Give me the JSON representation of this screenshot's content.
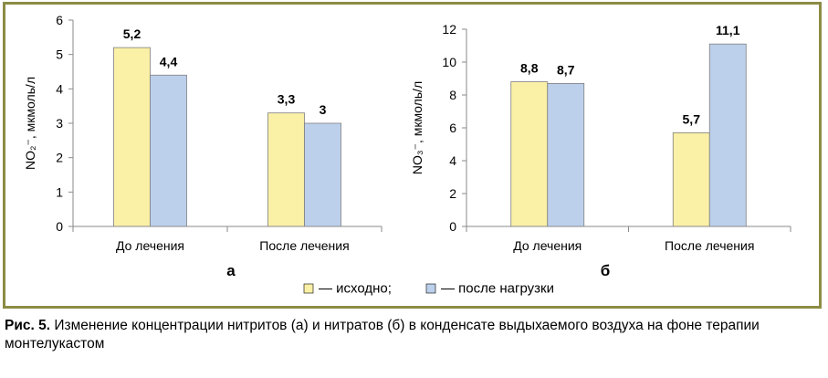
{
  "legend": [
    {
      "name": "— исходно;",
      "color": "#faf0a6"
    },
    {
      "name": "— после нагрузки",
      "color": "#bcd0ec"
    }
  ],
  "caption": {
    "label": "Рис. 5.",
    "text": " Изменение концентрации нитритов (а) и нитратов (б) в конденсате выдыхаемого воздуха на фоне терапии монтелукастом"
  },
  "chart_data": [
    {
      "type": "bar",
      "panel_label": "а",
      "ylabel": "NO₂⁻, мкмоль/л",
      "categories": [
        "До лечения",
        "После лечения"
      ],
      "series": [
        {
          "values": [
            5.2,
            3.3
          ],
          "labels": [
            "5,2",
            "3,3"
          ],
          "color": "#faf0a6"
        },
        {
          "values": [
            4.4,
            3.0
          ],
          "labels": [
            "4,4",
            "3"
          ],
          "color": "#bcd0ec"
        }
      ],
      "ylim": [
        0,
        6
      ],
      "yticks": [
        0,
        1,
        2,
        3,
        4,
        5,
        6
      ],
      "grid": false
    },
    {
      "type": "bar",
      "panel_label": "б",
      "ylabel": "NO₃⁻, мкмоль/л",
      "categories": [
        "До лечения",
        "После лечения"
      ],
      "series": [
        {
          "values": [
            8.8,
            5.7
          ],
          "labels": [
            "8,8",
            "5,7"
          ],
          "color": "#faf0a6"
        },
        {
          "values": [
            8.7,
            11.1
          ],
          "labels": [
            "8,7",
            "11,1"
          ],
          "color": "#bcd0ec"
        }
      ],
      "ylim": [
        0,
        12
      ],
      "yticks": [
        0,
        2,
        4,
        6,
        8,
        10,
        12
      ],
      "grid": false
    }
  ]
}
